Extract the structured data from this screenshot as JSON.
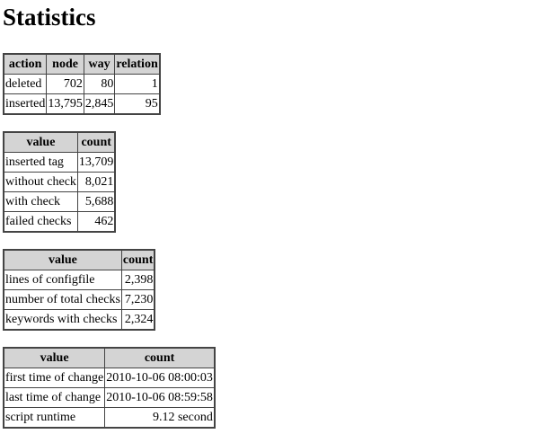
{
  "title": "Statistics",
  "tables": [
    {
      "headers": [
        "action",
        "node",
        "way",
        "relation"
      ],
      "rows": [
        [
          "deleted",
          "702",
          "80",
          "1"
        ],
        [
          "inserted",
          "13,795",
          "2,845",
          "95"
        ]
      ]
    },
    {
      "headers": [
        "value",
        "count"
      ],
      "rows": [
        [
          "inserted tag",
          "13,709"
        ],
        [
          "without check",
          "8,021"
        ],
        [
          "with check",
          "5,688"
        ],
        [
          "failed checks",
          "462"
        ]
      ]
    },
    {
      "headers": [
        "value",
        "count"
      ],
      "rows": [
        [
          "lines of configfile",
          "2,398"
        ],
        [
          "number of total checks",
          "7,230"
        ],
        [
          "keywords with checks",
          "2,324"
        ]
      ]
    },
    {
      "headers": [
        "value",
        "count"
      ],
      "rows": [
        [
          "first time of change",
          "2010-10-06 08:00:03"
        ],
        [
          "last time of change",
          "2010-10-06 08:59:58"
        ],
        [
          "script runtime",
          "9.12 second"
        ]
      ]
    }
  ]
}
